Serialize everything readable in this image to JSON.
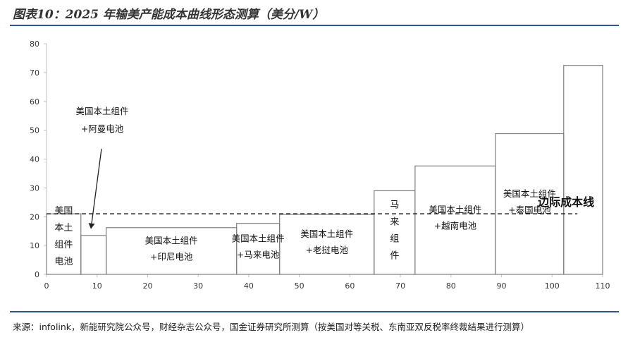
{
  "header": {
    "title": "图表10：2025 年输美产能成本曲线形态测算（美分/W）"
  },
  "footer": {
    "source": "来源：infolink，新能研究院公众号，财经杂志公众号，国金证券研究所测算（按美国对等关税、东南亚双反税率终裁结果进行测算）"
  },
  "colors": {
    "step_line": "#7f7f7f",
    "axis": "#bfbfbf",
    "text": "#222222",
    "rule": "#2f5496"
  },
  "chart_data": {
    "type": "step",
    "title": "",
    "xlabel": "",
    "ylabel": "",
    "xlim": [
      0,
      110
    ],
    "ylim": [
      0,
      80
    ],
    "x_ticks": [
      0,
      10,
      20,
      30,
      40,
      50,
      60,
      70,
      80,
      90,
      100,
      110
    ],
    "y_ticks": [
      0,
      10,
      20,
      30,
      40,
      50,
      60,
      70,
      80
    ],
    "grid": false,
    "segments": [
      {
        "x0": 0,
        "x1": 6.8,
        "value": 21,
        "label": [
          "美国",
          "本土",
          "组件",
          "电池"
        ]
      },
      {
        "x0": 6.8,
        "x1": 11.8,
        "value": 13.5,
        "label": []
      },
      {
        "x0": 11.8,
        "x1": 37.6,
        "value": 16.2,
        "label": [
          "美国本土组件",
          "+印尼电池"
        ]
      },
      {
        "x0": 37.6,
        "x1": 46.1,
        "value": 17.7,
        "label": [
          "美国本土组件",
          "+马来电池"
        ]
      },
      {
        "x0": 46.1,
        "x1": 64.8,
        "value": 20.8,
        "label": [
          "美国本土组件",
          "+老挝电池"
        ]
      },
      {
        "x0": 64.8,
        "x1": 72.9,
        "value": 29,
        "label": [
          "马",
          "来",
          "组",
          "件"
        ]
      },
      {
        "x0": 72.9,
        "x1": 88.8,
        "value": 37.6,
        "label": [
          "美国本土组件",
          "+越南电池"
        ]
      },
      {
        "x0": 88.8,
        "x1": 102.3,
        "value": 48.8,
        "label": [
          "美国本土组件",
          "+泰国电池"
        ]
      },
      {
        "x0": 102.3,
        "x1": 110,
        "value": 72.5,
        "label": []
      }
    ],
    "reference_line": {
      "value": 21,
      "x0": 0,
      "x1": 105,
      "label": "边际成本线",
      "style": "dashed"
    },
    "annotations": [
      {
        "text": [
          "美国本土组件",
          "+阿曼电池"
        ],
        "arrow_to": {
          "x": 8.8,
          "y": 16
        }
      }
    ]
  }
}
